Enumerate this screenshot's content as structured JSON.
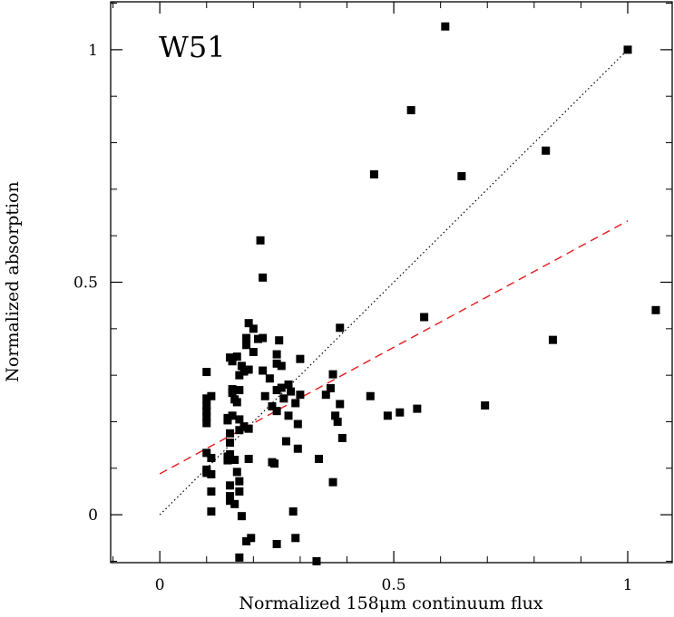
{
  "chart_data": {
    "type": "scatter",
    "title": "W51",
    "xlabel": "Normalized 158μm continuum flux",
    "ylabel": "Normalized absorption",
    "xlim": [
      -0.105,
      1.095
    ],
    "ylim": [
      -0.103,
      1.103
    ],
    "x_ticks": [
      0,
      0.5,
      1
    ],
    "x_tick_labels": [
      "0",
      "0.5",
      "1"
    ],
    "y_ticks": [
      0,
      0.5,
      1
    ],
    "y_tick_labels": [
      "0",
      "0.5",
      "1"
    ],
    "grid": false,
    "marker_color": "#000000",
    "identity_line": {
      "style": "dotted",
      "color": "#000000",
      "x": [
        0,
        1
      ],
      "y": [
        0,
        1
      ]
    },
    "fit_line": {
      "style": "dashed",
      "color": "#e31a1c",
      "x": [
        0,
        1
      ],
      "y": [
        0.088,
        0.632
      ]
    },
    "points": [
      [
        0.1,
        0.307
      ],
      [
        0.1,
        0.25
      ],
      [
        0.1,
        0.235
      ],
      [
        0.1,
        0.222
      ],
      [
        0.1,
        0.21
      ],
      [
        0.1,
        0.197
      ],
      [
        0.1,
        0.133
      ],
      [
        0.1,
        0.097
      ],
      [
        0.1,
        0.09
      ],
      [
        0.11,
        0.255
      ],
      [
        0.11,
        0.122
      ],
      [
        0.11,
        0.087
      ],
      [
        0.11,
        0.05
      ],
      [
        0.11,
        0.007
      ],
      [
        0.145,
        0.208
      ],
      [
        0.145,
        0.203
      ],
      [
        0.145,
        0.125
      ],
      [
        0.145,
        0.117
      ],
      [
        0.15,
        0.338
      ],
      [
        0.15,
        0.175
      ],
      [
        0.15,
        0.155
      ],
      [
        0.15,
        0.13
      ],
      [
        0.15,
        0.063
      ],
      [
        0.15,
        0.04
      ],
      [
        0.15,
        0.03
      ],
      [
        0.155,
        0.33
      ],
      [
        0.155,
        0.27
      ],
      [
        0.155,
        0.262
      ],
      [
        0.155,
        0.213
      ],
      [
        0.16,
        0.248
      ],
      [
        0.16,
        0.118
      ],
      [
        0.16,
        0.023
      ],
      [
        0.165,
        0.34
      ],
      [
        0.165,
        0.242
      ],
      [
        0.165,
        0.092
      ],
      [
        0.17,
        0.3
      ],
      [
        0.17,
        0.268
      ],
      [
        0.17,
        0.205
      ],
      [
        0.17,
        0.182
      ],
      [
        0.17,
        0.072
      ],
      [
        0.17,
        0.05
      ],
      [
        0.17,
        -0.092
      ],
      [
        0.175,
        0.32
      ],
      [
        0.175,
        -0.003
      ],
      [
        0.18,
        0.308
      ],
      [
        0.18,
        0.19
      ],
      [
        0.185,
        0.38
      ],
      [
        0.185,
        0.365
      ],
      [
        0.185,
        -0.057
      ],
      [
        0.19,
        0.412
      ],
      [
        0.19,
        0.312
      ],
      [
        0.19,
        0.185
      ],
      [
        0.19,
        0.12
      ],
      [
        0.195,
        -0.05
      ],
      [
        0.2,
        0.4
      ],
      [
        0.2,
        0.35
      ],
      [
        0.21,
        0.378
      ],
      [
        0.215,
        0.59
      ],
      [
        0.22,
        0.51
      ],
      [
        0.22,
        0.38
      ],
      [
        0.22,
        0.31
      ],
      [
        0.225,
        0.255
      ],
      [
        0.235,
        0.293
      ],
      [
        0.24,
        0.233
      ],
      [
        0.24,
        0.113
      ],
      [
        0.245,
        0.11
      ],
      [
        0.25,
        0.345
      ],
      [
        0.25,
        0.325
      ],
      [
        0.25,
        0.268
      ],
      [
        0.25,
        0.223
      ],
      [
        0.25,
        -0.063
      ],
      [
        0.255,
        0.375
      ],
      [
        0.26,
        0.32
      ],
      [
        0.26,
        0.273
      ],
      [
        0.265,
        0.25
      ],
      [
        0.27,
        0.158
      ],
      [
        0.275,
        0.28
      ],
      [
        0.275,
        0.213
      ],
      [
        0.28,
        0.265
      ],
      [
        0.285,
        0.007
      ],
      [
        0.29,
        0.24
      ],
      [
        0.29,
        -0.05
      ],
      [
        0.295,
        0.195
      ],
      [
        0.295,
        0.142
      ],
      [
        0.3,
        0.335
      ],
      [
        0.3,
        0.258
      ],
      [
        0.335,
        -0.1
      ],
      [
        0.34,
        0.12
      ],
      [
        0.355,
        0.258
      ],
      [
        0.365,
        0.272
      ],
      [
        0.37,
        0.302
      ],
      [
        0.37,
        0.07
      ],
      [
        0.375,
        0.213
      ],
      [
        0.38,
        0.2
      ],
      [
        0.385,
        0.402
      ],
      [
        0.385,
        0.238
      ],
      [
        0.39,
        0.165
      ],
      [
        0.45,
        0.255
      ],
      [
        0.458,
        0.732
      ],
      [
        0.487,
        0.213
      ],
      [
        0.513,
        0.22
      ],
      [
        0.537,
        0.87
      ],
      [
        0.55,
        0.228
      ],
      [
        0.565,
        0.425
      ],
      [
        0.61,
        1.05
      ],
      [
        0.645,
        0.728
      ],
      [
        0.695,
        0.235
      ],
      [
        0.825,
        0.783
      ],
      [
        0.84,
        0.376
      ],
      [
        1.0,
        1.0
      ],
      [
        1.06,
        0.44
      ]
    ]
  }
}
